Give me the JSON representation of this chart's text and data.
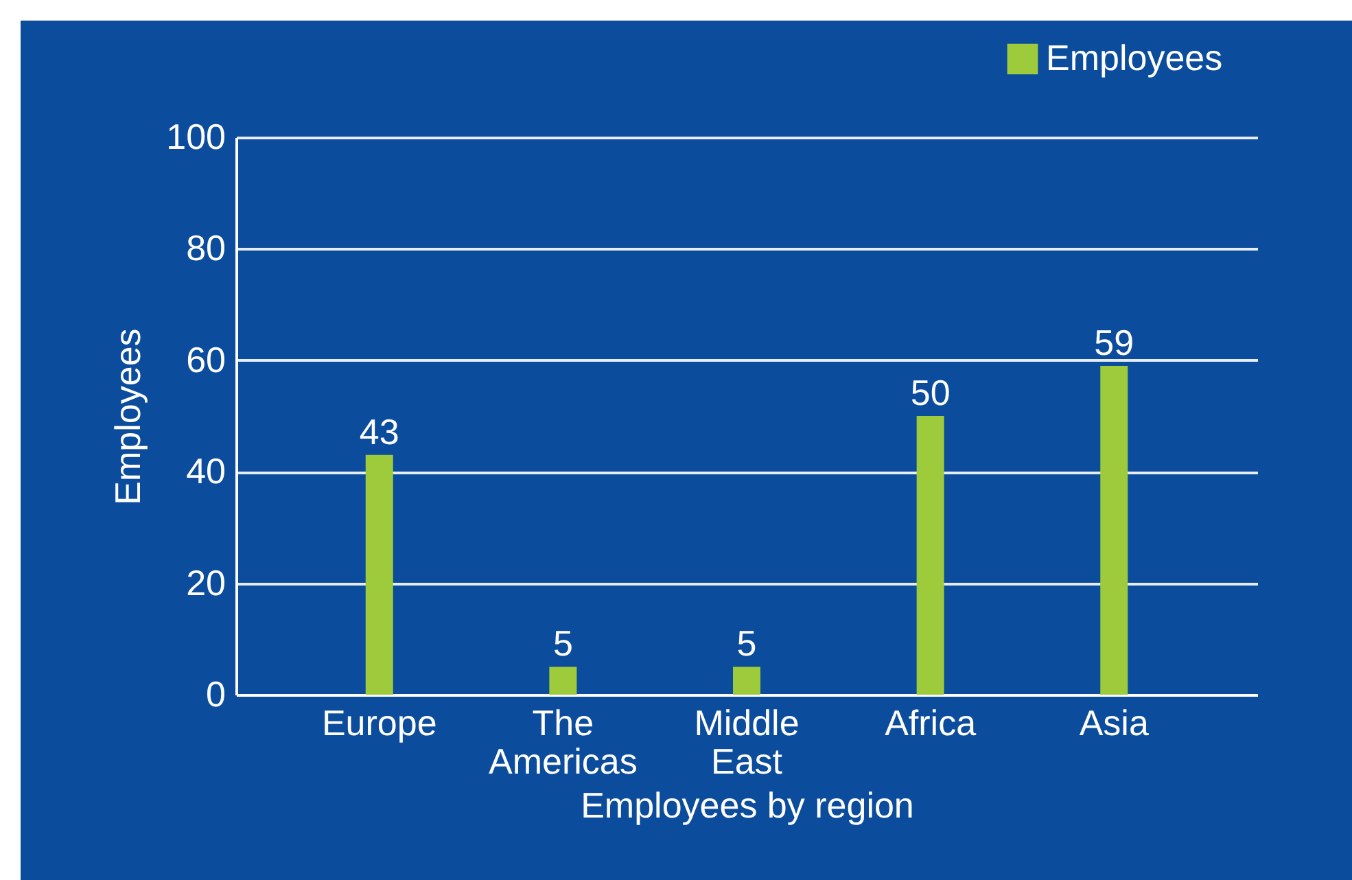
{
  "chart_data": {
    "type": "bar",
    "xlabel": "Employees by region",
    "ylabel": "Employees",
    "categories": [
      "Europe",
      "The\nAmericas",
      "Middle\nEast",
      "Africa",
      "Asia"
    ],
    "series": [
      {
        "name": "Employees",
        "color": "#9dcb3b",
        "values": [
          43,
          5,
          5,
          50,
          59
        ]
      }
    ],
    "data_labels": true,
    "ylim": [
      0,
      100
    ],
    "yticks": [
      0,
      20,
      40,
      60,
      80,
      100
    ],
    "grid": "y",
    "legend": "top right"
  }
}
